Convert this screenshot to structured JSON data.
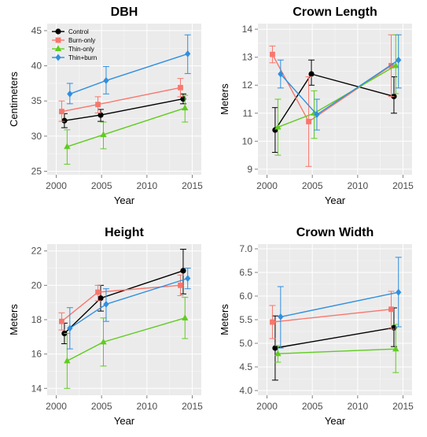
{
  "chart_data": [
    {
      "type": "line",
      "title": "DBH",
      "xlabel": "Year",
      "ylabel": "Centimeters",
      "xlim": [
        1999,
        2016
      ],
      "ylim": [
        24.5,
        46
      ],
      "xticks": [
        2000,
        2005,
        2010,
        2015
      ],
      "yticks": [
        25,
        30,
        35,
        40,
        45
      ],
      "grid": true,
      "legend": "top-left",
      "series": [
        {
          "name": "Control",
          "color": "#000000",
          "marker": "circle",
          "points": [
            {
              "x": 2000.9,
              "y": 32.2,
              "lo": 31.2,
              "hi": 33.2
            },
            {
              "x": 2004.9,
              "y": 33.0,
              "lo": 32.1,
              "hi": 33.8
            },
            {
              "x": 2014.0,
              "y": 35.3,
              "lo": 34.6,
              "hi": 36.0
            }
          ]
        },
        {
          "name": "Burn-only",
          "color": "#f8766d",
          "marker": "square",
          "points": [
            {
              "x": 2000.6,
              "y": 33.5,
              "lo": 32.1,
              "hi": 35.0
            },
            {
              "x": 2004.6,
              "y": 34.5,
              "lo": 33.3,
              "hi": 35.6
            },
            {
              "x": 2013.7,
              "y": 36.9,
              "lo": 35.6,
              "hi": 38.2
            }
          ]
        },
        {
          "name": "Thin-only",
          "color": "#5fcc1f",
          "marker": "triangle",
          "points": [
            {
              "x": 2001.2,
              "y": 28.5,
              "lo": 26.0,
              "hi": 30.9
            },
            {
              "x": 2005.2,
              "y": 30.2,
              "lo": 28.2,
              "hi": 32.0
            },
            {
              "x": 2014.2,
              "y": 34.0,
              "lo": 32.0,
              "hi": 35.8
            }
          ]
        },
        {
          "name": "Thin+burn",
          "color": "#2f8fe0",
          "marker": "diamond",
          "points": [
            {
              "x": 2001.5,
              "y": 36.0,
              "lo": 34.6,
              "hi": 37.5
            },
            {
              "x": 2005.5,
              "y": 37.9,
              "lo": 36.0,
              "hi": 39.9
            },
            {
              "x": 2014.5,
              "y": 41.7,
              "lo": 38.9,
              "hi": 44.4
            }
          ]
        }
      ]
    },
    {
      "type": "line",
      "title": "Crown Length",
      "xlabel": "Year",
      "ylabel": "Meters",
      "xlim": [
        1999,
        2016
      ],
      "ylim": [
        8.8,
        14.2
      ],
      "xticks": [
        2000,
        2005,
        2010,
        2015
      ],
      "yticks": [
        9,
        10,
        11,
        12,
        13,
        14
      ],
      "grid": true,
      "series": [
        {
          "name": "Control",
          "color": "#000000",
          "marker": "circle",
          "points": [
            {
              "x": 2000.9,
              "y": 10.4,
              "lo": 9.6,
              "hi": 11.2
            },
            {
              "x": 2004.9,
              "y": 12.4,
              "lo": 12.0,
              "hi": 12.9
            },
            {
              "x": 2014.0,
              "y": 11.6,
              "lo": 11.0,
              "hi": 12.3
            }
          ]
        },
        {
          "name": "Burn-only",
          "color": "#f8766d",
          "marker": "square",
          "points": [
            {
              "x": 2000.6,
              "y": 13.1,
              "lo": 12.8,
              "hi": 13.4
            },
            {
              "x": 2004.6,
              "y": 10.7,
              "lo": 9.1,
              "hi": 12.3
            },
            {
              "x": 2013.7,
              "y": 12.7,
              "lo": 11.6,
              "hi": 13.8
            }
          ]
        },
        {
          "name": "Thin-only",
          "color": "#5fcc1f",
          "marker": "triangle",
          "points": [
            {
              "x": 2001.2,
              "y": 10.5,
              "lo": 9.5,
              "hi": 11.5
            },
            {
              "x": 2005.2,
              "y": 11.0,
              "lo": 10.1,
              "hi": 11.8
            },
            {
              "x": 2014.2,
              "y": 12.7,
              "lo": 11.7,
              "hi": 13.8
            }
          ]
        },
        {
          "name": "Thin+burn",
          "color": "#2f8fe0",
          "marker": "diamond",
          "points": [
            {
              "x": 2001.5,
              "y": 12.4,
              "lo": 11.9,
              "hi": 12.9
            },
            {
              "x": 2005.5,
              "y": 10.95,
              "lo": 10.4,
              "hi": 11.5
            },
            {
              "x": 2014.5,
              "y": 12.9,
              "lo": 11.9,
              "hi": 13.8
            }
          ]
        }
      ]
    },
    {
      "type": "line",
      "title": "Height",
      "xlabel": "Year",
      "ylabel": "Meters",
      "xlim": [
        1999,
        2016
      ],
      "ylim": [
        13.6,
        22.4
      ],
      "xticks": [
        2000,
        2005,
        2010,
        2015
      ],
      "yticks": [
        14,
        16,
        18,
        20,
        22
      ],
      "grid": true,
      "series": [
        {
          "name": "Control",
          "color": "#000000",
          "marker": "circle",
          "points": [
            {
              "x": 2000.9,
              "y": 17.2,
              "lo": 16.6,
              "hi": 17.8
            },
            {
              "x": 2004.9,
              "y": 19.25,
              "lo": 18.5,
              "hi": 20.0
            },
            {
              "x": 2014.0,
              "y": 20.85,
              "lo": 19.5,
              "hi": 22.1
            }
          ]
        },
        {
          "name": "Burn-only",
          "color": "#f8766d",
          "marker": "square",
          "points": [
            {
              "x": 2000.6,
              "y": 17.9,
              "lo": 17.4,
              "hi": 18.4
            },
            {
              "x": 2004.6,
              "y": 19.6,
              "lo": 19.1,
              "hi": 20.0
            },
            {
              "x": 2013.7,
              "y": 20.0,
              "lo": 19.4,
              "hi": 20.6
            }
          ]
        },
        {
          "name": "Thin-only",
          "color": "#5fcc1f",
          "marker": "triangle",
          "points": [
            {
              "x": 2001.2,
              "y": 15.6,
              "lo": 14.0,
              "hi": 17.2
            },
            {
              "x": 2005.2,
              "y": 16.7,
              "lo": 15.3,
              "hi": 18.1
            },
            {
              "x": 2014.2,
              "y": 18.1,
              "lo": 16.9,
              "hi": 19.3
            }
          ]
        },
        {
          "name": "Thin+burn",
          "color": "#2f8fe0",
          "marker": "diamond",
          "points": [
            {
              "x": 2001.5,
              "y": 17.5,
              "lo": 16.3,
              "hi": 18.7
            },
            {
              "x": 2005.5,
              "y": 18.9,
              "lo": 17.9,
              "hi": 19.8
            },
            {
              "x": 2014.5,
              "y": 20.4,
              "lo": 19.8,
              "hi": 21.0
            }
          ]
        }
      ]
    },
    {
      "type": "line",
      "title": "Crown Width",
      "xlabel": "Year",
      "ylabel": "Meters",
      "xlim": [
        1999,
        2016
      ],
      "ylim": [
        3.9,
        7.1
      ],
      "xticks": [
        2000,
        2005,
        2010,
        2015
      ],
      "yticks": [
        4.0,
        4.5,
        5.0,
        5.5,
        6.0,
        6.5,
        7.0
      ],
      "grid": true,
      "series": [
        {
          "name": "Control",
          "color": "#000000",
          "marker": "circle",
          "points": [
            {
              "x": 2000.9,
              "y": 4.9,
              "lo": 4.22,
              "hi": 5.58
            },
            {
              "x": 2014.0,
              "y": 5.33,
              "lo": 4.93,
              "hi": 5.75
            }
          ]
        },
        {
          "name": "Burn-only",
          "color": "#f8766d",
          "marker": "square",
          "points": [
            {
              "x": 2000.6,
              "y": 5.45,
              "lo": 5.1,
              "hi": 5.8
            },
            {
              "x": 2013.7,
              "y": 5.72,
              "lo": 5.3,
              "hi": 6.1
            }
          ]
        },
        {
          "name": "Thin-only",
          "color": "#5fcc1f",
          "marker": "triangle",
          "points": [
            {
              "x": 2001.2,
              "y": 4.78,
              "lo": 4.6,
              "hi": 4.95
            },
            {
              "x": 2014.2,
              "y": 4.88,
              "lo": 4.38,
              "hi": 5.4
            }
          ]
        },
        {
          "name": "Thin+burn",
          "color": "#2f8fe0",
          "marker": "diamond",
          "points": [
            {
              "x": 2001.5,
              "y": 5.56,
              "lo": 4.9,
              "hi": 6.2
            },
            {
              "x": 2014.5,
              "y": 6.08,
              "lo": 5.35,
              "hi": 6.82
            }
          ]
        }
      ]
    }
  ]
}
